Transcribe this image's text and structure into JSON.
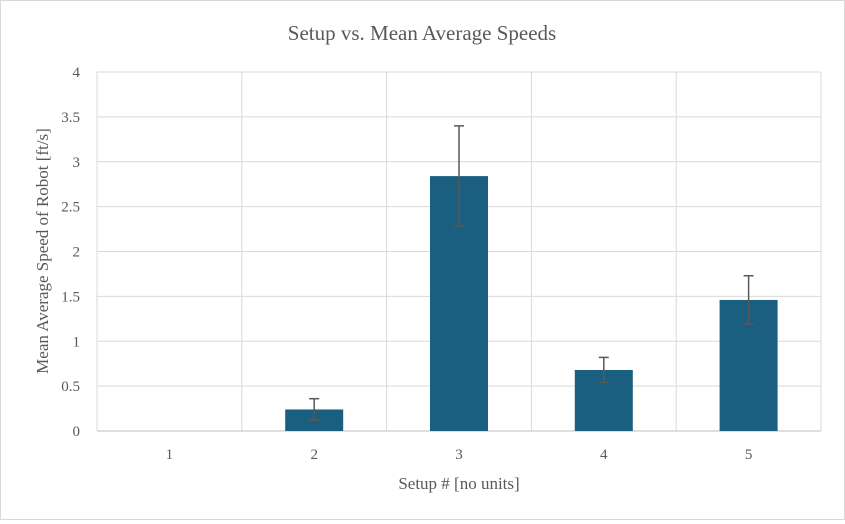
{
  "chart_data": {
    "type": "bar",
    "title": "Setup vs. Mean Average Speeds",
    "xlabel": "Setup # [no units]",
    "ylabel": "Mean Average Speed of Robot [ft/s]",
    "categories": [
      "1",
      "2",
      "3",
      "4",
      "5"
    ],
    "values": [
      0,
      0.24,
      2.84,
      0.68,
      1.46
    ],
    "error_low": [
      0,
      0.12,
      0.56,
      0.14,
      0.27
    ],
    "error_high": [
      0,
      0.12,
      0.56,
      0.14,
      0.27
    ],
    "ylim": [
      0,
      4
    ],
    "yticks": [
      "0",
      "0.5",
      "1",
      "1.5",
      "2",
      "2.5",
      "3",
      "3.5",
      "4"
    ],
    "grid": true,
    "bar_color": "#1a5e80",
    "error_bar_color": "#595959",
    "grid_color": "#d9d9d9"
  }
}
